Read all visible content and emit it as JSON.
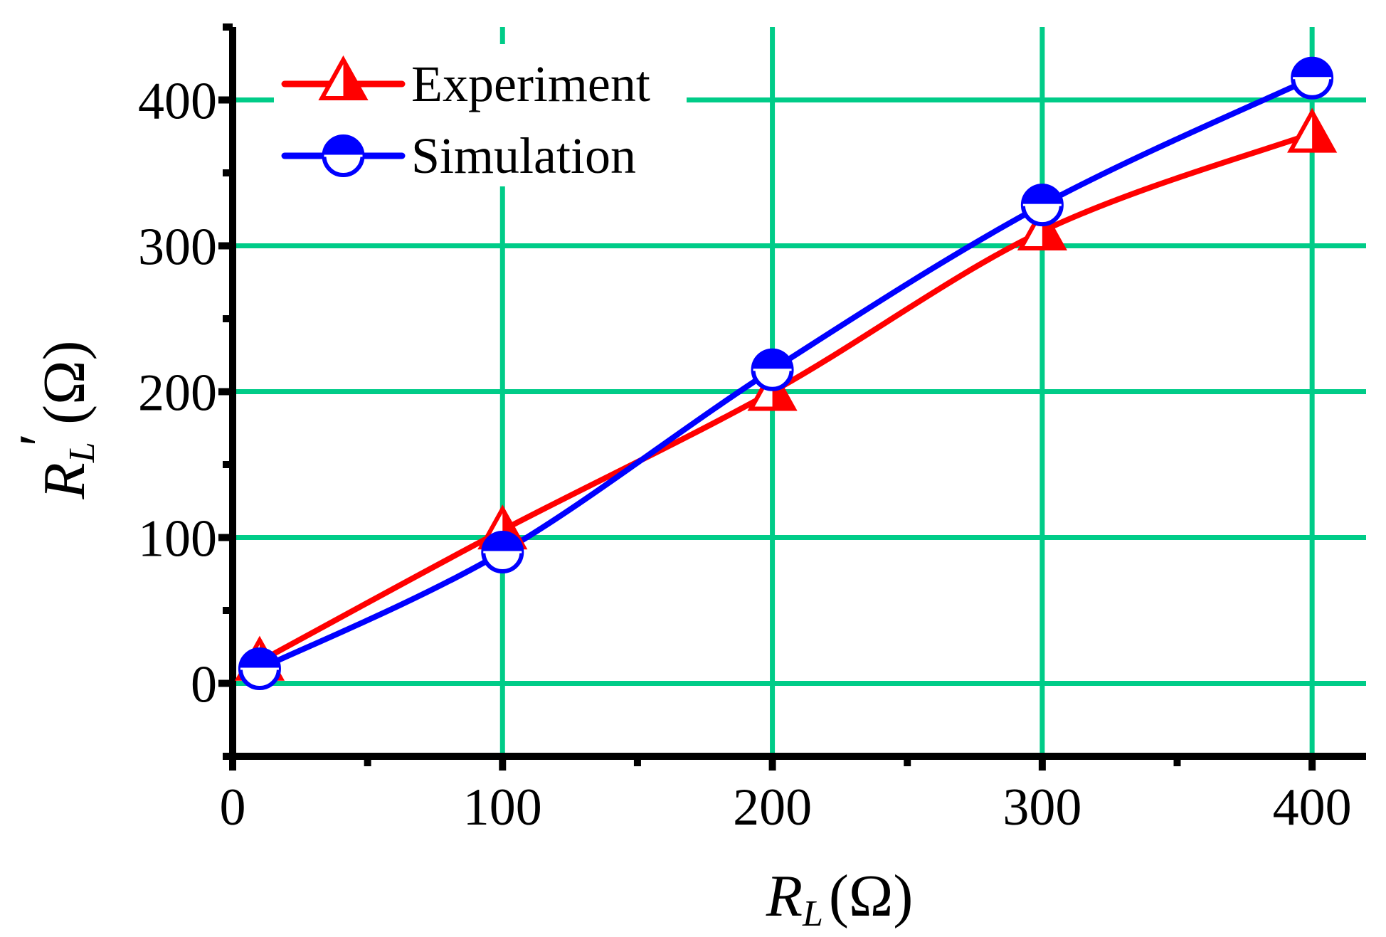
{
  "chart_data": {
    "type": "line",
    "title": "",
    "x_axis": {
      "label_symbol": "R",
      "label_subscript": "L",
      "label_unit": "(Ω)",
      "range": [
        0,
        420
      ],
      "ticks": [
        0,
        100,
        200,
        300,
        400
      ],
      "tick_labels": [
        "0",
        "100",
        "200",
        "300",
        "400"
      ]
    },
    "y_axis": {
      "label_symbol": "R",
      "label_prime": "′",
      "label_subscript": "L",
      "label_unit": "(Ω)",
      "range": [
        -50,
        450
      ],
      "ticks": [
        0,
        100,
        200,
        300,
        400
      ],
      "tick_labels": [
        "0",
        "100",
        "200",
        "300",
        "400"
      ]
    },
    "grid": true,
    "legend_position": "top-left",
    "series": [
      {
        "name": "Experiment",
        "color": "#ff0000",
        "marker": "half-filled-triangle",
        "x": [
          10,
          100,
          200,
          300,
          400
        ],
        "y": [
          15,
          105,
          200,
          310,
          377
        ]
      },
      {
        "name": "Simulation",
        "color": "#0000ff",
        "marker": "half-filled-circle",
        "x": [
          10,
          100,
          200,
          300,
          400
        ],
        "y": [
          10,
          90,
          215,
          328,
          415
        ]
      }
    ],
    "grid_color": "#00cc88",
    "axis_color": "#000000"
  }
}
